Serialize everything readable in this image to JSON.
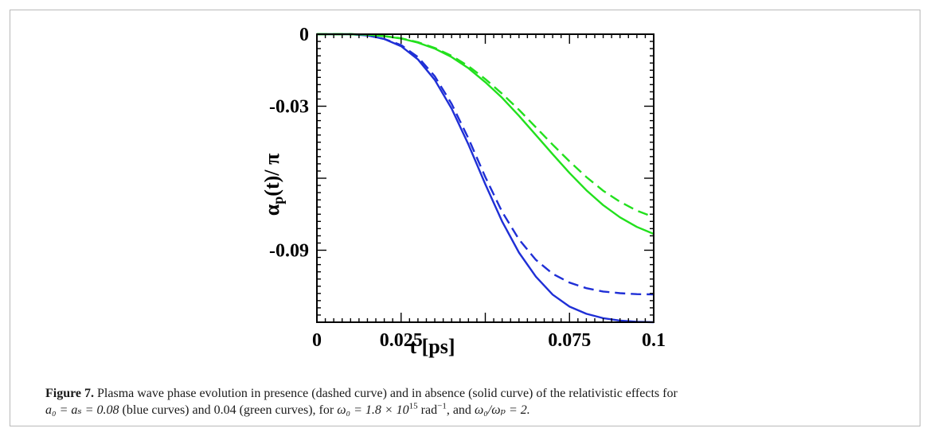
{
  "chart_data": {
    "type": "line",
    "xlabel": "t [ps]",
    "ylabel": {
      "main": "α",
      "sub": "p",
      "rest": "(t)/ π"
    },
    "xlim": [
      0,
      0.1
    ],
    "ylim": [
      -0.12,
      0
    ],
    "x_ticks": [
      {
        "value": 0,
        "label": "0"
      },
      {
        "value": 0.025,
        "label": "0.025"
      },
      {
        "value": 0.075,
        "label": "0.075"
      },
      {
        "value": 0.1,
        "label": "0.1"
      }
    ],
    "y_ticks": [
      {
        "value": 0,
        "label": "0"
      },
      {
        "value": -0.03,
        "label": "-0.03"
      },
      {
        "value": -0.09,
        "label": "-0.09"
      }
    ],
    "grid": false,
    "series": [
      {
        "color": "#1f2fd6",
        "dash": "solid",
        "x": [
          0,
          0.005,
          0.01,
          0.015,
          0.02,
          0.025,
          0.03,
          0.035,
          0.04,
          0.045,
          0.05,
          0.055,
          0.06,
          0.065,
          0.07,
          0.075,
          0.08,
          0.085,
          0.09,
          0.095,
          0.1
        ],
        "y": [
          0,
          0,
          0,
          -0.0005,
          -0.002,
          -0.005,
          -0.0105,
          -0.019,
          -0.031,
          -0.046,
          -0.0625,
          -0.078,
          -0.091,
          -0.101,
          -0.1085,
          -0.1135,
          -0.1165,
          -0.1183,
          -0.1193,
          -0.1198,
          -0.12
        ]
      },
      {
        "color": "#1f2fd6",
        "dash": "dashed",
        "x": [
          0,
          0.005,
          0.01,
          0.015,
          0.02,
          0.025,
          0.03,
          0.035,
          0.04,
          0.045,
          0.05,
          0.055,
          0.06,
          0.065,
          0.07,
          0.075,
          0.08,
          0.085,
          0.09,
          0.095,
          0.1
        ],
        "y": [
          0,
          0,
          0,
          -0.0005,
          -0.002,
          -0.0045,
          -0.0095,
          -0.0175,
          -0.029,
          -0.0435,
          -0.0595,
          -0.074,
          -0.0855,
          -0.094,
          -0.0998,
          -0.1035,
          -0.1058,
          -0.1072,
          -0.1079,
          -0.1083,
          -0.1084
        ]
      },
      {
        "color": "#22e01d",
        "dash": "solid",
        "x": [
          0,
          0.005,
          0.01,
          0.015,
          0.02,
          0.025,
          0.03,
          0.035,
          0.04,
          0.045,
          0.05,
          0.055,
          0.06,
          0.065,
          0.07,
          0.075,
          0.08,
          0.085,
          0.09,
          0.095,
          0.1
        ],
        "y": [
          0,
          0,
          0,
          -0.0002,
          -0.0008,
          -0.0018,
          -0.0035,
          -0.006,
          -0.0095,
          -0.0142,
          -0.02,
          -0.0265,
          -0.034,
          -0.042,
          -0.05,
          -0.0578,
          -0.065,
          -0.0712,
          -0.0763,
          -0.0803,
          -0.0832
        ]
      },
      {
        "color": "#22e01d",
        "dash": "dashed",
        "x": [
          0,
          0.005,
          0.01,
          0.015,
          0.02,
          0.025,
          0.03,
          0.035,
          0.04,
          0.045,
          0.05,
          0.055,
          0.06,
          0.065,
          0.07,
          0.075,
          0.08,
          0.085,
          0.09,
          0.095,
          0.1
        ],
        "y": [
          0,
          0,
          0,
          -0.0002,
          -0.0008,
          -0.0017,
          -0.0033,
          -0.0057,
          -0.009,
          -0.0133,
          -0.0187,
          -0.0248,
          -0.0315,
          -0.0388,
          -0.046,
          -0.053,
          -0.0595,
          -0.0652,
          -0.0698,
          -0.0735,
          -0.0762
        ]
      }
    ]
  },
  "caption": {
    "label": "Figure 7.",
    "line1": "Plasma wave phase evolution in presence (dashed curve) and in absence (solid curve) of the relativistic effects for",
    "a0_eq_as": "a₀ = aₛ = 0.08",
    "blue_text": "(blue curves) and 0.04 (green curves), for",
    "omega0_val": "ω₀ = 1.8 × 10",
    "omega0_exp": "15",
    "unit": "rad",
    "unit_exp": "−1",
    "ratio_lead": ", and",
    "ratio": "ω₀/ωₚ = 2."
  }
}
